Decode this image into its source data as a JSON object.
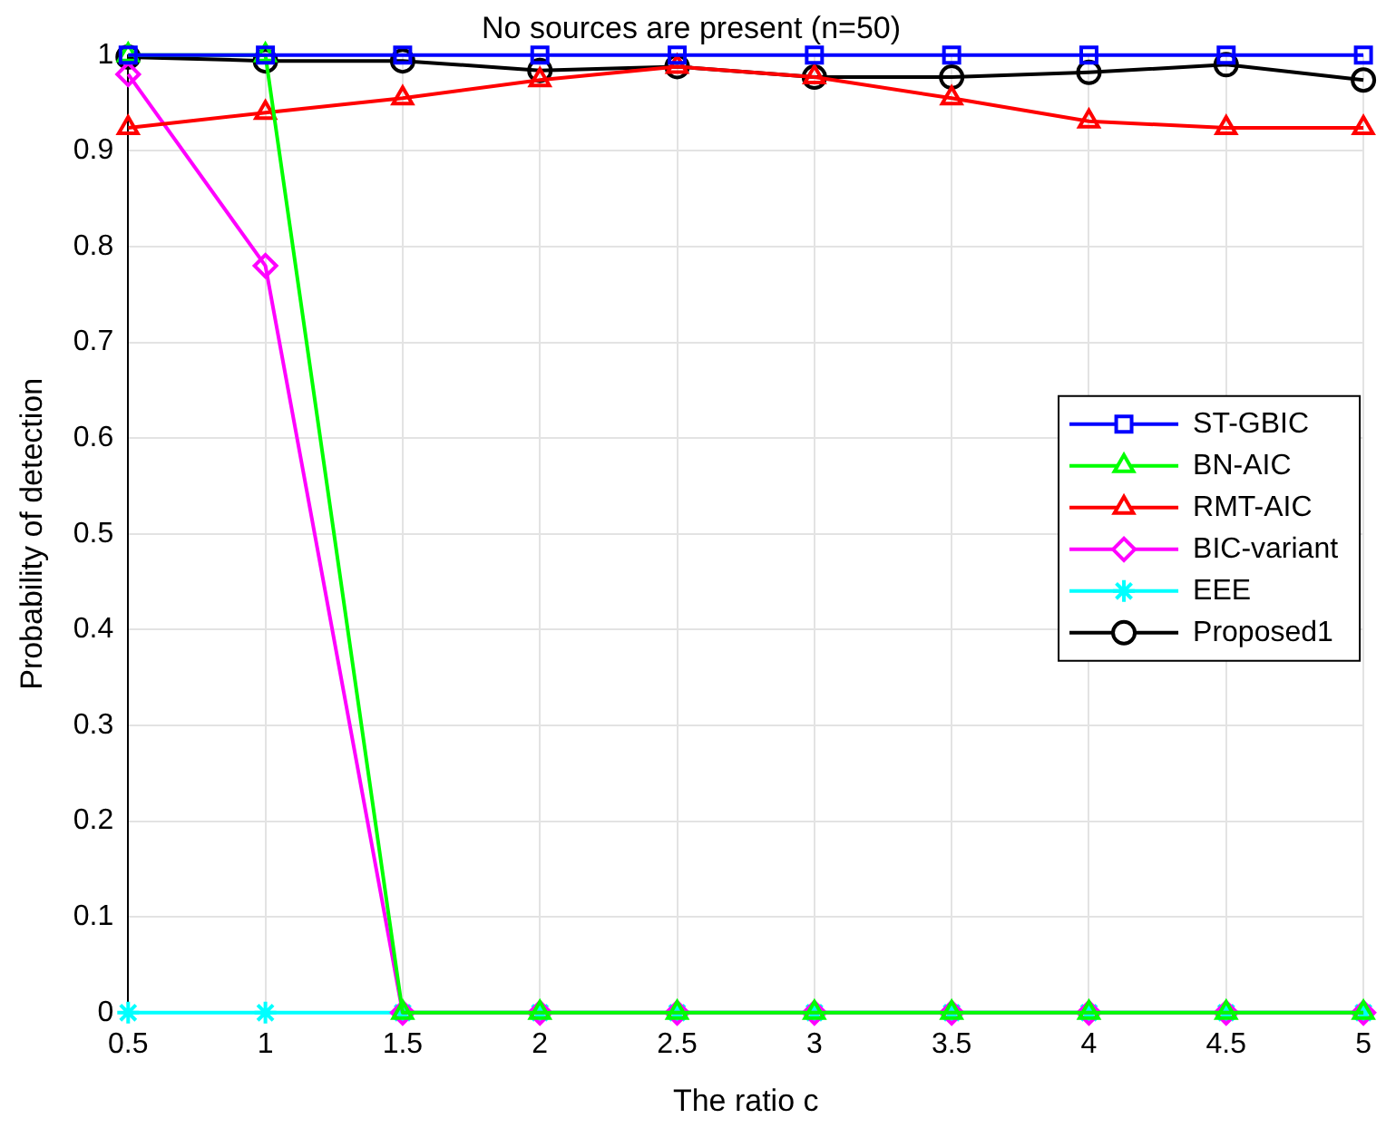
{
  "chart_data": {
    "type": "line",
    "title": "No sources are present (n=50)",
    "xlabel": "The ratio c",
    "ylabel": "Probability of detection",
    "x": [
      0.5,
      1,
      1.5,
      2,
      2.5,
      3,
      3.5,
      4,
      4.5,
      5
    ],
    "xlim": [
      0.5,
      5
    ],
    "xticks": [
      0.5,
      1,
      1.5,
      2,
      2.5,
      3,
      3.5,
      4,
      4.5,
      5
    ],
    "ylim": [
      0,
      1
    ],
    "yticks": [
      0,
      0.1,
      0.2,
      0.3,
      0.4,
      0.5,
      0.6,
      0.7,
      0.8,
      0.9,
      1
    ],
    "grid": true,
    "legend": "right",
    "line_style": "solid",
    "series": [
      {
        "name": "ST-GBIC",
        "color": "#0000ff",
        "marker": "square",
        "values": [
          1,
          1,
          1,
          1,
          1,
          1,
          1,
          1,
          1,
          1
        ]
      },
      {
        "name": "BN-AIC",
        "color": "#00ff00",
        "marker": "triangle",
        "values": [
          1,
          1,
          0,
          0,
          0,
          0,
          0,
          0,
          0,
          0
        ]
      },
      {
        "name": "RMT-AIC",
        "color": "#ff0000",
        "marker": "triangle",
        "values": [
          0.924,
          0.94,
          0.955,
          0.974,
          0.988,
          0.977,
          0.955,
          0.931,
          0.924,
          0.924
        ]
      },
      {
        "name": "BIC-variant",
        "color": "#ff00ff",
        "marker": "diamond",
        "values": [
          0.98,
          0.78,
          0,
          0,
          0,
          0,
          0,
          0,
          0,
          0
        ]
      },
      {
        "name": "EEE",
        "color": "#00ffff",
        "marker": "cross",
        "values": [
          0,
          0,
          0,
          0,
          0,
          0,
          0,
          0,
          0,
          0
        ]
      },
      {
        "name": "Proposed1",
        "color": "#000000",
        "marker": "circle",
        "values": [
          0.998,
          0.994,
          0.994,
          0.984,
          0.988,
          0.977,
          0.977,
          0.982,
          0.99,
          0.974
        ]
      }
    ]
  }
}
